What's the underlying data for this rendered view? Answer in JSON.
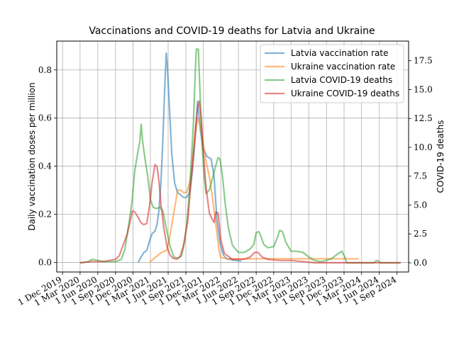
{
  "chart_data": {
    "type": "line",
    "title": "Vaccinations and COVID-19 deaths for Latvia and Ukraine",
    "ylabel_left": "Daily vaccination doses per million",
    "ylabel_right": "COVID-19 deaths",
    "ylim_left": [
      -0.04,
      0.92
    ],
    "ylim_right": [
      -0.8,
      19.2
    ],
    "x_start": "2019-11-01",
    "x_end": "2024-10-31",
    "grid": true,
    "legend_position": "top-right",
    "x_ticks": [
      {
        "date": "2019-12-01",
        "label": "1 Dec 2019"
      },
      {
        "date": "2020-03-01",
        "label": "1 Mar 2020"
      },
      {
        "date": "2020-06-01",
        "label": "1 Jun 2020"
      },
      {
        "date": "2020-09-01",
        "label": "1 Sep 2020"
      },
      {
        "date": "2020-12-01",
        "label": "1 Dec 2020"
      },
      {
        "date": "2021-03-01",
        "label": "1 Mar 2021"
      },
      {
        "date": "2021-06-01",
        "label": "1 Jun 2021"
      },
      {
        "date": "2021-09-01",
        "label": "1 Sep 2021"
      },
      {
        "date": "2021-12-01",
        "label": "1 Dec 2021"
      },
      {
        "date": "2022-03-01",
        "label": "1 Mar 2022"
      },
      {
        "date": "2022-06-01",
        "label": "1 Jun 2022"
      },
      {
        "date": "2022-09-01",
        "label": "1 Sep 2022"
      },
      {
        "date": "2022-12-01",
        "label": "1 Dec 2022"
      },
      {
        "date": "2023-03-01",
        "label": "1 Mar 2023"
      },
      {
        "date": "2023-06-01",
        "label": "1 Jun 2023"
      },
      {
        "date": "2023-09-01",
        "label": "1 Sep 2023"
      },
      {
        "date": "2023-12-01",
        "label": "1 Dec 2023"
      },
      {
        "date": "2024-03-01",
        "label": "1 Mar 2024"
      },
      {
        "date": "2024-06-01",
        "label": "1 Jun 2024"
      },
      {
        "date": "2024-09-01",
        "label": "1 Sep 2024"
      }
    ],
    "y_ticks_left": [
      {
        "value": 0.0,
        "label": "0.0"
      },
      {
        "value": 0.2,
        "label": "0.2"
      },
      {
        "value": 0.4,
        "label": "0.4"
      },
      {
        "value": 0.6,
        "label": "0.6"
      },
      {
        "value": 0.8,
        "label": "0.8"
      }
    ],
    "y_ticks_right": [
      {
        "value": 0.0,
        "label": "0.0"
      },
      {
        "value": 2.5,
        "label": "2.5"
      },
      {
        "value": 5.0,
        "label": "5.0"
      },
      {
        "value": 7.5,
        "label": "7.5"
      },
      {
        "value": 10.0,
        "label": "10.0"
      },
      {
        "value": 12.5,
        "label": "12.5"
      },
      {
        "value": 15.0,
        "label": "15.0"
      },
      {
        "value": 17.5,
        "label": "17.5"
      }
    ],
    "series": [
      {
        "name": "Latvia vaccination rate",
        "axis": "left",
        "color": "#1f77b4",
        "points": [
          [
            "2020-12-28",
            0.0
          ],
          [
            "2021-01-10",
            0.02
          ],
          [
            "2021-01-25",
            0.04
          ],
          [
            "2021-02-10",
            0.05
          ],
          [
            "2021-02-25",
            0.09
          ],
          [
            "2021-03-10",
            0.12
          ],
          [
            "2021-03-25",
            0.13
          ],
          [
            "2021-04-05",
            0.16
          ],
          [
            "2021-04-15",
            0.22
          ],
          [
            "2021-04-25",
            0.34
          ],
          [
            "2021-05-05",
            0.52
          ],
          [
            "2021-05-15",
            0.74
          ],
          [
            "2021-05-22",
            0.87
          ],
          [
            "2021-05-28",
            0.82
          ],
          [
            "2021-06-08",
            0.64
          ],
          [
            "2021-06-20",
            0.45
          ],
          [
            "2021-07-05",
            0.33
          ],
          [
            "2021-07-20",
            0.29
          ],
          [
            "2021-08-05",
            0.28
          ],
          [
            "2021-08-20",
            0.27
          ],
          [
            "2021-09-05",
            0.27
          ],
          [
            "2021-09-20",
            0.29
          ],
          [
            "2021-10-05",
            0.38
          ],
          [
            "2021-10-20",
            0.52
          ],
          [
            "2021-11-01",
            0.67
          ],
          [
            "2021-11-15",
            0.55
          ],
          [
            "2021-12-01",
            0.47
          ],
          [
            "2021-12-20",
            0.44
          ],
          [
            "2022-01-10",
            0.43
          ],
          [
            "2022-01-25",
            0.36
          ],
          [
            "2022-02-10",
            0.17
          ],
          [
            "2022-02-25",
            0.08
          ],
          [
            "2022-03-15",
            0.03
          ],
          [
            "2022-04-01",
            0.015
          ],
          [
            "2022-05-01",
            0.01
          ],
          [
            "2022-06-15",
            0.005
          ]
        ]
      },
      {
        "name": "Ukraine vaccination rate",
        "axis": "left",
        "color": "#ff7f0e",
        "points": [
          [
            "2021-02-25",
            0.0
          ],
          [
            "2021-03-10",
            0.01
          ],
          [
            "2021-03-25",
            0.02
          ],
          [
            "2021-04-10",
            0.03
          ],
          [
            "2021-04-25",
            0.04
          ],
          [
            "2021-05-10",
            0.045
          ],
          [
            "2021-05-25",
            0.05
          ],
          [
            "2021-06-08",
            0.1
          ],
          [
            "2021-06-25",
            0.18
          ],
          [
            "2021-07-10",
            0.25
          ],
          [
            "2021-07-20",
            0.3
          ],
          [
            "2021-08-05",
            0.3
          ],
          [
            "2021-08-20",
            0.29
          ],
          [
            "2021-09-05",
            0.29
          ],
          [
            "2021-09-20",
            0.33
          ],
          [
            "2021-10-05",
            0.42
          ],
          [
            "2021-10-20",
            0.53
          ],
          [
            "2021-11-01",
            0.6
          ],
          [
            "2021-11-15",
            0.57
          ],
          [
            "2021-12-01",
            0.49
          ],
          [
            "2021-12-15",
            0.42
          ],
          [
            "2022-01-05",
            0.34
          ],
          [
            "2022-01-20",
            0.25
          ],
          [
            "2022-02-05",
            0.15
          ],
          [
            "2022-02-20",
            0.05
          ],
          [
            "2022-03-01",
            0.02
          ],
          [
            "2022-04-01",
            0.015
          ],
          [
            "2022-09-01",
            0.015
          ],
          [
            "2023-03-01",
            0.015
          ],
          [
            "2023-09-01",
            0.015
          ],
          [
            "2024-01-01",
            0.015
          ],
          [
            "2024-02-15",
            0.015
          ]
        ]
      },
      {
        "name": "Latvia COVID-19 deaths",
        "axis": "right",
        "color": "#2ca02c",
        "points": [
          [
            "2020-03-01",
            0.0
          ],
          [
            "2020-04-15",
            0.1
          ],
          [
            "2020-05-01",
            0.3
          ],
          [
            "2020-06-01",
            0.2
          ],
          [
            "2020-07-01",
            0.1
          ],
          [
            "2020-08-01",
            0.1
          ],
          [
            "2020-09-01",
            0.1
          ],
          [
            "2020-10-01",
            0.3
          ],
          [
            "2020-10-20",
            1.2
          ],
          [
            "2020-11-10",
            3.5
          ],
          [
            "2020-11-25",
            5.2
          ],
          [
            "2020-12-10",
            8.0
          ],
          [
            "2020-12-25",
            9.5
          ],
          [
            "2021-01-05",
            10.5
          ],
          [
            "2021-01-12",
            12.0
          ],
          [
            "2021-01-20",
            10.5
          ],
          [
            "2021-02-01",
            9.0
          ],
          [
            "2021-02-15",
            7.5
          ],
          [
            "2021-03-01",
            5.5
          ],
          [
            "2021-03-15",
            4.8
          ],
          [
            "2021-04-01",
            4.7
          ],
          [
            "2021-04-20",
            4.8
          ],
          [
            "2021-05-05",
            4.5
          ],
          [
            "2021-05-20",
            3.2
          ],
          [
            "2021-06-10",
            1.5
          ],
          [
            "2021-07-01",
            0.5
          ],
          [
            "2021-07-20",
            0.4
          ],
          [
            "2021-08-10",
            0.6
          ],
          [
            "2021-08-25",
            1.8
          ],
          [
            "2021-09-10",
            4.0
          ],
          [
            "2021-09-25",
            7.5
          ],
          [
            "2021-10-10",
            12.0
          ],
          [
            "2021-10-20",
            16.5
          ],
          [
            "2021-10-25",
            18.5
          ],
          [
            "2021-11-05",
            18.5
          ],
          [
            "2021-11-15",
            14.0
          ],
          [
            "2021-11-25",
            10.0
          ],
          [
            "2021-12-05",
            7.5
          ],
          [
            "2021-12-15",
            6.0
          ],
          [
            "2022-01-01",
            6.3
          ],
          [
            "2022-01-20",
            7.5
          ],
          [
            "2022-02-05",
            8.5
          ],
          [
            "2022-02-15",
            9.1
          ],
          [
            "2022-02-25",
            9.0
          ],
          [
            "2022-03-10",
            7.5
          ],
          [
            "2022-03-25",
            5.0
          ],
          [
            "2022-04-10",
            3.0
          ],
          [
            "2022-05-01",
            1.5
          ],
          [
            "2022-06-01",
            0.9
          ],
          [
            "2022-07-01",
            0.9
          ],
          [
            "2022-08-01",
            1.2
          ],
          [
            "2022-08-20",
            1.6
          ],
          [
            "2022-09-01",
            2.6
          ],
          [
            "2022-09-15",
            2.7
          ],
          [
            "2022-09-25",
            2.3
          ],
          [
            "2022-10-10",
            1.6
          ],
          [
            "2022-11-01",
            1.3
          ],
          [
            "2022-12-01",
            1.4
          ],
          [
            "2022-12-20",
            2.2
          ],
          [
            "2023-01-01",
            2.8
          ],
          [
            "2023-01-15",
            2.7
          ],
          [
            "2023-02-01",
            1.8
          ],
          [
            "2023-03-01",
            1.0
          ],
          [
            "2023-04-01",
            1.0
          ],
          [
            "2023-05-01",
            0.9
          ],
          [
            "2023-06-01",
            0.5
          ],
          [
            "2023-07-01",
            0.2
          ],
          [
            "2023-08-01",
            0.1
          ],
          [
            "2023-09-01",
            0.2
          ],
          [
            "2023-10-01",
            0.4
          ],
          [
            "2023-11-01",
            0.8
          ],
          [
            "2023-11-20",
            1.0
          ],
          [
            "2023-12-05",
            0.5
          ],
          [
            "2023-12-15",
            0.0
          ],
          [
            "2024-05-01",
            0.0
          ],
          [
            "2024-05-20",
            0.2
          ],
          [
            "2024-06-10",
            0.0
          ],
          [
            "2024-09-20",
            0.0
          ]
        ]
      },
      {
        "name": "Ukraine COVID-19 deaths",
        "axis": "right",
        "color": "#d62728",
        "points": [
          [
            "2020-03-01",
            0.0
          ],
          [
            "2020-05-01",
            0.1
          ],
          [
            "2020-07-01",
            0.1
          ],
          [
            "2020-09-01",
            0.3
          ],
          [
            "2020-09-20",
            0.6
          ],
          [
            "2020-10-10",
            1.5
          ],
          [
            "2020-11-01",
            2.5
          ],
          [
            "2020-11-15",
            3.5
          ],
          [
            "2020-11-28",
            4.5
          ],
          [
            "2020-12-10",
            4.4
          ],
          [
            "2020-12-25",
            4.0
          ],
          [
            "2021-01-10",
            3.5
          ],
          [
            "2021-01-25",
            3.3
          ],
          [
            "2021-02-10",
            3.4
          ],
          [
            "2021-02-25",
            5.0
          ],
          [
            "2021-03-10",
            7.0
          ],
          [
            "2021-03-25",
            8.5
          ],
          [
            "2021-04-05",
            8.3
          ],
          [
            "2021-04-15",
            7.0
          ],
          [
            "2021-04-25",
            5.0
          ],
          [
            "2021-05-10",
            3.0
          ],
          [
            "2021-05-25",
            1.5
          ],
          [
            "2021-06-10",
            0.7
          ],
          [
            "2021-06-25",
            0.4
          ],
          [
            "2021-07-15",
            0.3
          ],
          [
            "2021-08-01",
            0.5
          ],
          [
            "2021-08-20",
            1.5
          ],
          [
            "2021-09-10",
            3.5
          ],
          [
            "2021-10-01",
            7.5
          ],
          [
            "2021-10-20",
            11.5
          ],
          [
            "2021-11-01",
            13.5
          ],
          [
            "2021-11-10",
            14.0
          ],
          [
            "2021-11-20",
            12.5
          ],
          [
            "2021-12-01",
            9.5
          ],
          [
            "2021-12-15",
            6.5
          ],
          [
            "2022-01-01",
            4.3
          ],
          [
            "2022-01-15",
            3.8
          ],
          [
            "2022-01-25",
            3.5
          ],
          [
            "2022-02-05",
            4.4
          ],
          [
            "2022-02-15",
            4.3
          ],
          [
            "2022-03-01",
            2.0
          ],
          [
            "2022-03-20",
            0.8
          ],
          [
            "2022-05-01",
            0.3
          ],
          [
            "2022-07-01",
            0.3
          ],
          [
            "2022-08-01",
            0.5
          ],
          [
            "2022-08-25",
            0.9
          ],
          [
            "2022-09-10",
            0.9
          ],
          [
            "2022-10-01",
            0.5
          ],
          [
            "2022-11-01",
            0.3
          ],
          [
            "2023-01-01",
            0.2
          ],
          [
            "2023-03-01",
            0.2
          ],
          [
            "2023-05-01",
            0.1
          ],
          [
            "2023-07-01",
            0.0
          ],
          [
            "2024-09-20",
            0.0
          ]
        ]
      }
    ]
  }
}
